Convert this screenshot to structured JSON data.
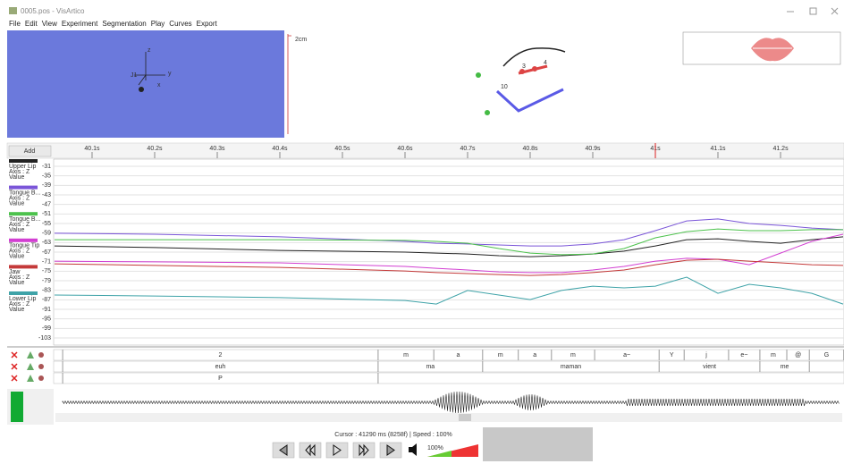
{
  "window": {
    "title": "0005.pos - VisArtico"
  },
  "menu": [
    "File",
    "Edit",
    "View",
    "Experiment",
    "Segmentation",
    "Play",
    "Curves",
    "Export"
  ],
  "view3d": {
    "labels": [
      "z",
      "J1",
      "x",
      "y"
    ]
  },
  "view2d": {
    "scale": "2cm",
    "labels": [
      "10",
      "3",
      "4"
    ]
  },
  "chart_data": {
    "type": "line",
    "add_button": "Add",
    "x": [
      40.04,
      40.2,
      40.4,
      40.6,
      40.65,
      40.7,
      40.75,
      40.8,
      40.85,
      40.9,
      40.95,
      41.0,
      41.05,
      41.1,
      41.15,
      41.2,
      41.25,
      41.3
    ],
    "xlim": [
      40.0386,
      41.3014
    ],
    "xticks": [
      {
        "value": 40.1,
        "label": "40.1s"
      },
      {
        "value": 40.2,
        "label": "40.2s"
      },
      {
        "value": 40.3,
        "label": "40.3s"
      },
      {
        "value": 40.4,
        "label": "40.4s"
      },
      {
        "value": 40.5,
        "label": "40.5s"
      },
      {
        "value": 40.6,
        "label": "40.6s"
      },
      {
        "value": 40.7,
        "label": "40.7s"
      },
      {
        "value": 40.8,
        "label": "40.8s"
      },
      {
        "value": 40.9,
        "label": "40.9s"
      },
      {
        "value": 41.0,
        "label": "41s"
      },
      {
        "value": 41.1,
        "label": "41.1s"
      },
      {
        "value": 41.2,
        "label": "41.2s"
      }
    ],
    "cursor": 41.0,
    "ylim": [
      -106,
      -28
    ],
    "yticks": [
      -31,
      -35,
      -39,
      -43,
      -47,
      -51,
      -55,
      -59,
      -63,
      -67,
      -71,
      -75,
      -79,
      -83,
      -87,
      -91,
      -95,
      -99,
      -103
    ],
    "grid": true,
    "series": [
      {
        "name": "Upper Lip",
        "details": [
          "Axis : Z",
          "Value"
        ],
        "color": "#222222",
        "values": [
          -64.4,
          -65.1,
          -66.3,
          -67,
          -67.4,
          -67.8,
          -68.5,
          -68.9,
          -68.5,
          -67.8,
          -66.6,
          -64.4,
          -61.8,
          -61.4,
          -62.5,
          -63.3,
          -61.8,
          -60.6
        ]
      },
      {
        "name": "Tongue B...",
        "details": [
          "Axis : Z",
          "Value"
        ],
        "color": "#7a55d8",
        "values": [
          -59.1,
          -59.5,
          -60.6,
          -62.5,
          -63.3,
          -63.6,
          -64,
          -64.4,
          -64.4,
          -63.6,
          -61.8,
          -58,
          -53.9,
          -53.1,
          -55,
          -55.8,
          -56.9,
          -57.6
        ]
      },
      {
        "name": "Tongue B...",
        "details": [
          "Axis : Z",
          "Value"
        ],
        "color": "#4cc24c",
        "values": [
          -61.8,
          -61.8,
          -61.8,
          -62.1,
          -62.5,
          -63.3,
          -65.5,
          -67.4,
          -68.1,
          -67.8,
          -65.5,
          -61,
          -58.4,
          -57.3,
          -58,
          -58,
          -57.6,
          -57.6
        ]
      },
      {
        "name": "Tongue Tip",
        "details": [
          "Axis : Z",
          "Value"
        ],
        "color": "#d23fd2",
        "values": [
          -70.8,
          -71.1,
          -71.5,
          -73,
          -73.8,
          -74.5,
          -75.3,
          -75.6,
          -75.6,
          -74.5,
          -73,
          -70.8,
          -69.6,
          -70,
          -72.3,
          -67.4,
          -62.5,
          -59.5
        ]
      },
      {
        "name": "Jaw",
        "details": [
          "Axis : Z",
          "Value"
        ],
        "color": "#c43a3a",
        "values": [
          -71.9,
          -72.6,
          -73.4,
          -74.9,
          -75.6,
          -76,
          -76.4,
          -76.8,
          -76.4,
          -75.6,
          -74.5,
          -72.3,
          -70.4,
          -70,
          -70.8,
          -71.5,
          -72.3,
          -72.6
        ]
      },
      {
        "name": "Lower Lip",
        "details": [
          "Axis : Z",
          "Value"
        ],
        "color": "#3fa3a8",
        "values": [
          -85,
          -85.4,
          -86.1,
          -87.3,
          -88.8,
          -83.1,
          -85,
          -86.9,
          -83.1,
          -81.3,
          -82,
          -81.3,
          -77.5,
          -84.3,
          -80.5,
          -82,
          -84.3,
          -88.8
        ]
      }
    ]
  },
  "tiers": [
    {
      "bounds": [
        40.053,
        40.557,
        40.646,
        40.724,
        40.781,
        40.834,
        40.903,
        41.006,
        41.046,
        41.117,
        41.167,
        41.21,
        41.246,
        41.301
      ],
      "labels": [
        "2",
        "m",
        "a",
        "m",
        "a",
        "m",
        "a~",
        "Y",
        "j",
        "e~",
        "m",
        "@",
        "G"
      ]
    },
    {
      "bounds": [
        40.053,
        40.557,
        40.724,
        41.006,
        41.167,
        41.246
      ],
      "labels": [
        "euh",
        "ma",
        "maman",
        "vient",
        "me"
      ]
    },
    {
      "bounds": [
        40.053,
        40.557
      ],
      "labels": [
        "P"
      ]
    }
  ],
  "status": {
    "text": "Cursor : 41290 ms (8258f) | Speed : 100%",
    "volume": "100%"
  }
}
